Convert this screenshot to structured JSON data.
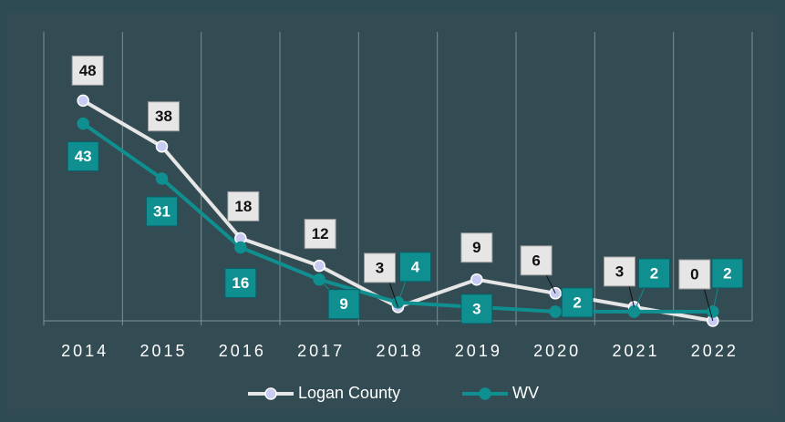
{
  "chart_data": {
    "type": "line",
    "categories": [
      "2014",
      "2015",
      "2016",
      "2017",
      "2018",
      "2019",
      "2020",
      "2021",
      "2022"
    ],
    "series": [
      {
        "name": "Logan County",
        "color": "#e6e6e6",
        "marker_color": "#c8ccf2",
        "label_color": "#e6e6e6",
        "values": [
          48,
          38,
          18,
          12,
          3,
          9,
          6,
          3,
          0
        ]
      },
      {
        "name": "WV",
        "color": "#0f8f8f",
        "marker_color": "#0f8f8f",
        "label_color": "#0f8f8f",
        "values": [
          43,
          31,
          16,
          9,
          4,
          3,
          2,
          2,
          2
        ]
      }
    ],
    "ylim": [
      0,
      60
    ],
    "grid": true,
    "legend": "bottom"
  }
}
